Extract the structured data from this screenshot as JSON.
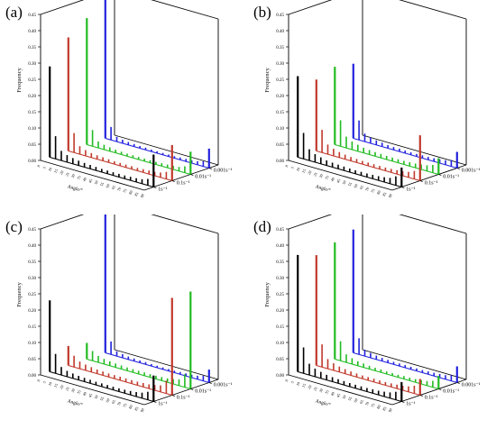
{
  "figure": {
    "panels": [
      {
        "label": "(a)"
      },
      {
        "label": "(b)"
      },
      {
        "label": "(c)"
      },
      {
        "label": "(d)"
      }
    ]
  },
  "chart_data": [
    {
      "type": "bar",
      "panel": "(a)",
      "xlabel": "Angle/°",
      "ylabel": "Frequency",
      "zlabel": "",
      "x_ticks": [
        "0",
        "5",
        "10",
        "15",
        "20",
        "25",
        "30",
        "35",
        "40",
        "45",
        "50",
        "55",
        "60",
        "65",
        "70",
        "75",
        "80",
        "85",
        "90"
      ],
      "y_ticks": [
        "0.00",
        "0.05",
        "0.10",
        "0.15",
        "0.20",
        "0.25",
        "0.30",
        "0.35",
        "0.40",
        "0.45"
      ],
      "ylim": [
        0,
        0.45
      ],
      "series": [
        {
          "name": "1s⁻¹",
          "color": "#000000",
          "values": [
            0.28,
            0.07,
            0.03,
            0.022,
            0.018,
            0.015,
            0.013,
            0.012,
            0.011,
            0.01,
            0.01,
            0.01,
            0.01,
            0.01,
            0.011,
            0.012,
            0.014,
            0.02,
            0.1
          ]
        },
        {
          "name": "0.1s⁻¹",
          "color": "#c0392b",
          "values": [
            0.35,
            0.06,
            0.025,
            0.018,
            0.014,
            0.012,
            0.011,
            0.01,
            0.009,
            0.009,
            0.009,
            0.009,
            0.009,
            0.01,
            0.011,
            0.012,
            0.015,
            0.022,
            0.11
          ]
        },
        {
          "name": "0.01s⁻¹",
          "color": "#22bb22",
          "values": [
            0.39,
            0.05,
            0.02,
            0.015,
            0.012,
            0.01,
            0.009,
            0.008,
            0.008,
            0.008,
            0.008,
            0.008,
            0.008,
            0.009,
            0.01,
            0.011,
            0.013,
            0.02,
            0.07
          ]
        },
        {
          "name": "0.001s⁻¹",
          "color": "#2222dd",
          "values": [
            0.43,
            0.04,
            0.015,
            0.011,
            0.009,
            0.008,
            0.007,
            0.007,
            0.006,
            0.006,
            0.006,
            0.006,
            0.006,
            0.007,
            0.008,
            0.009,
            0.011,
            0.016,
            0.06
          ]
        }
      ]
    },
    {
      "type": "bar",
      "panel": "(b)",
      "xlabel": "Angle/°",
      "ylabel": "Frequency",
      "zlabel": "",
      "x_ticks": [
        "0",
        "5",
        "10",
        "15",
        "20",
        "25",
        "30",
        "35",
        "40",
        "45",
        "50",
        "55",
        "60",
        "65",
        "70",
        "75",
        "80",
        "85",
        "90"
      ],
      "y_ticks": [
        "0.00",
        "0.05",
        "0.10",
        "0.15",
        "0.20",
        "0.25",
        "0.30",
        "0.35",
        "0.40",
        "0.45"
      ],
      "ylim": [
        0,
        0.45
      ],
      "series": [
        {
          "name": "1s⁻¹",
          "color": "#000000",
          "values": [
            0.25,
            0.08,
            0.035,
            0.025,
            0.02,
            0.016,
            0.014,
            0.013,
            0.012,
            0.011,
            0.011,
            0.011,
            0.011,
            0.012,
            0.013,
            0.015,
            0.018,
            0.028,
            0.06
          ]
        },
        {
          "name": "0.1s⁻¹",
          "color": "#c0392b",
          "values": [
            0.22,
            0.07,
            0.03,
            0.022,
            0.017,
            0.014,
            0.012,
            0.011,
            0.01,
            0.01,
            0.01,
            0.01,
            0.01,
            0.011,
            0.012,
            0.014,
            0.017,
            0.025,
            0.14
          ]
        },
        {
          "name": "0.01s⁻¹",
          "color": "#22bb22",
          "values": [
            0.24,
            0.08,
            0.035,
            0.025,
            0.02,
            0.016,
            0.014,
            0.013,
            0.012,
            0.011,
            0.011,
            0.011,
            0.011,
            0.012,
            0.013,
            0.015,
            0.018,
            0.024,
            0.05
          ]
        },
        {
          "name": "0.001s⁻¹",
          "color": "#2222dd",
          "values": [
            0.23,
            0.06,
            0.025,
            0.018,
            0.014,
            0.012,
            0.01,
            0.009,
            0.009,
            0.008,
            0.008,
            0.008,
            0.009,
            0.009,
            0.01,
            0.012,
            0.014,
            0.02,
            0.05
          ]
        }
      ]
    },
    {
      "type": "bar",
      "panel": "(c)",
      "xlabel": "Angle/°",
      "ylabel": "Frequency",
      "zlabel": "",
      "x_ticks": [
        "0",
        "5",
        "10",
        "15",
        "20",
        "25",
        "30",
        "35",
        "40",
        "45",
        "50",
        "55",
        "60",
        "65",
        "70",
        "75",
        "80",
        "85",
        "90"
      ],
      "y_ticks": [
        "0.00",
        "0.05",
        "0.10",
        "0.15",
        "0.20",
        "0.25",
        "0.30",
        "0.35",
        "0.40",
        "0.45"
      ],
      "ylim": [
        0,
        0.45
      ],
      "series": [
        {
          "name": "1s⁻¹",
          "color": "#000000",
          "values": [
            0.22,
            0.06,
            0.025,
            0.018,
            0.015,
            0.013,
            0.012,
            0.011,
            0.01,
            0.01,
            0.01,
            0.01,
            0.01,
            0.011,
            0.012,
            0.014,
            0.017,
            0.025,
            0.08
          ]
        },
        {
          "name": "0.1s⁻¹",
          "color": "#c0392b",
          "values": [
            0.06,
            0.035,
            0.022,
            0.018,
            0.015,
            0.013,
            0.012,
            0.011,
            0.011,
            0.011,
            0.011,
            0.011,
            0.011,
            0.012,
            0.013,
            0.016,
            0.02,
            0.04,
            0.3
          ]
        },
        {
          "name": "0.01s⁻¹",
          "color": "#22bb22",
          "values": [
            0.05,
            0.03,
            0.02,
            0.016,
            0.014,
            0.012,
            0.011,
            0.01,
            0.01,
            0.01,
            0.01,
            0.01,
            0.01,
            0.011,
            0.012,
            0.015,
            0.019,
            0.04,
            0.3
          ]
        },
        {
          "name": "0.001s⁻¹",
          "color": "#2222dd",
          "values": [
            0.43,
            0.04,
            0.015,
            0.011,
            0.009,
            0.008,
            0.007,
            0.007,
            0.006,
            0.006,
            0.006,
            0.006,
            0.006,
            0.007,
            0.008,
            0.009,
            0.011,
            0.016,
            0.04
          ]
        }
      ]
    },
    {
      "type": "bar",
      "panel": "(d)",
      "xlabel": "Angle/°",
      "ylabel": "Frequency",
      "zlabel": "",
      "x_ticks": [
        "0",
        "5",
        "10",
        "15",
        "20",
        "25",
        "30",
        "35",
        "40",
        "45",
        "50",
        "55",
        "60",
        "65",
        "70",
        "75",
        "80",
        "85",
        "90"
      ],
      "y_ticks": [
        "0.00",
        "0.05",
        "0.10",
        "0.15",
        "0.20",
        "0.25",
        "0.30",
        "0.35",
        "0.40",
        "0.45"
      ],
      "ylim": [
        0,
        0.45
      ],
      "series": [
        {
          "name": "1s⁻¹",
          "color": "#000000",
          "values": [
            0.36,
            0.08,
            0.035,
            0.025,
            0.02,
            0.016,
            0.014,
            0.013,
            0.012,
            0.011,
            0.011,
            0.011,
            0.011,
            0.012,
            0.013,
            0.015,
            0.018,
            0.025,
            0.06
          ]
        },
        {
          "name": "0.1s⁻¹",
          "color": "#c0392b",
          "values": [
            0.34,
            0.07,
            0.03,
            0.022,
            0.017,
            0.014,
            0.012,
            0.011,
            0.01,
            0.01,
            0.01,
            0.01,
            0.01,
            0.011,
            0.012,
            0.014,
            0.017,
            0.024,
            0.05
          ]
        },
        {
          "name": "0.01s⁻¹",
          "color": "#22bb22",
          "values": [
            0.36,
            0.06,
            0.025,
            0.018,
            0.014,
            0.012,
            0.01,
            0.009,
            0.009,
            0.008,
            0.008,
            0.008,
            0.009,
            0.009,
            0.01,
            0.012,
            0.014,
            0.02,
            0.04
          ]
        },
        {
          "name": "0.001s⁻¹",
          "color": "#2222dd",
          "values": [
            0.38,
            0.05,
            0.02,
            0.015,
            0.012,
            0.01,
            0.009,
            0.008,
            0.008,
            0.008,
            0.008,
            0.008,
            0.008,
            0.009,
            0.01,
            0.011,
            0.013,
            0.018,
            0.05
          ]
        }
      ]
    }
  ]
}
